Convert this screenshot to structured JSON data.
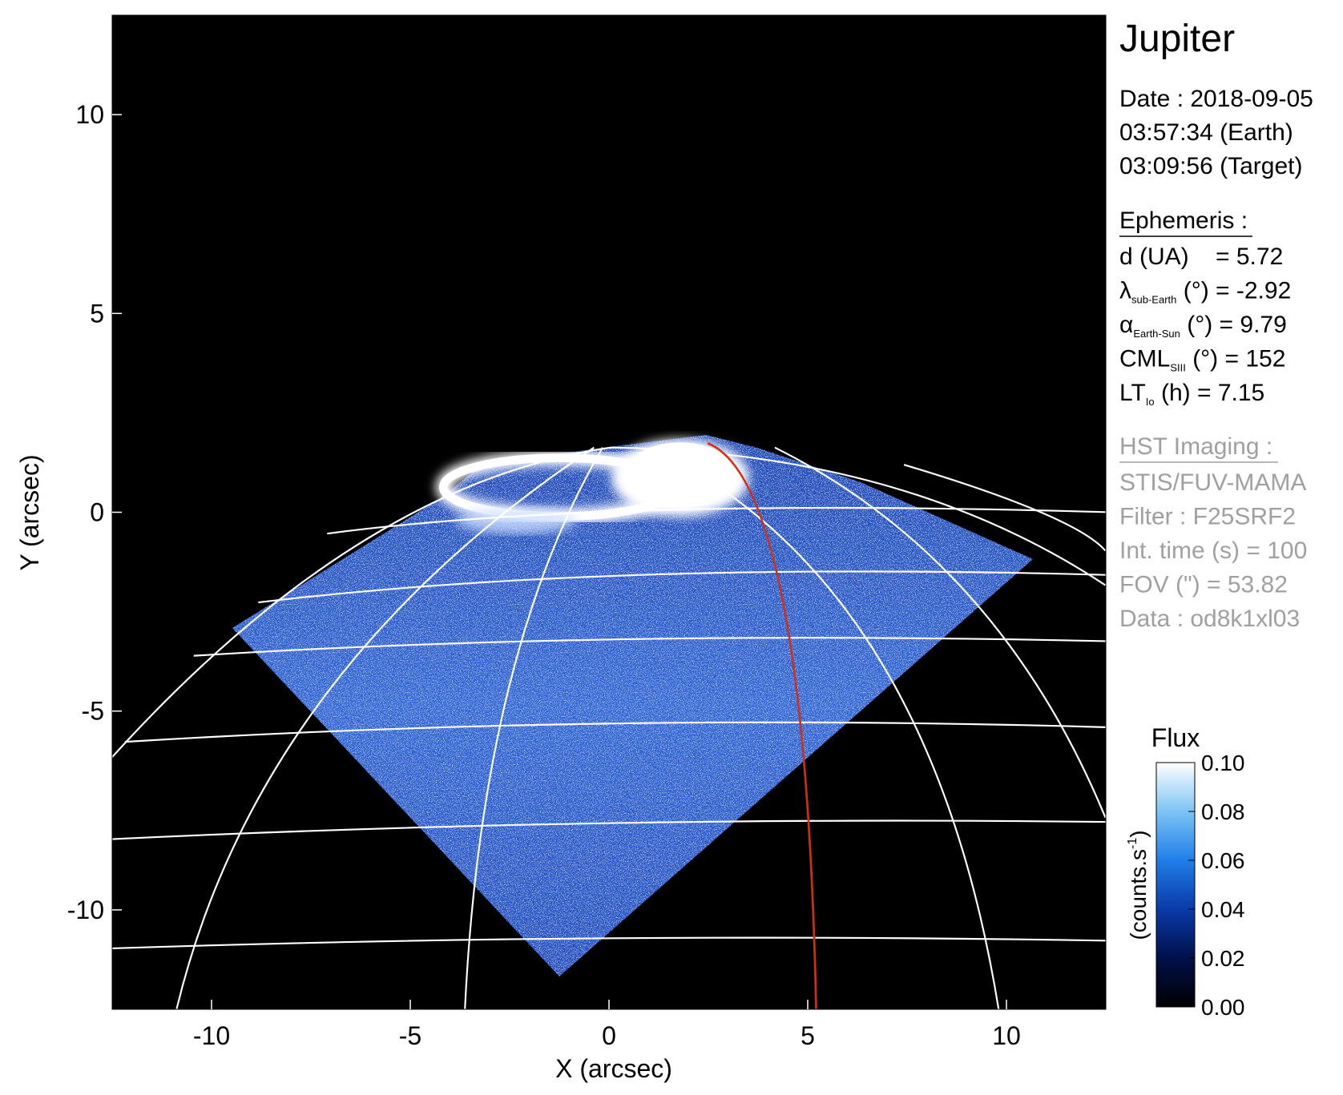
{
  "chart_data": {
    "type": "image",
    "xlabel": "X (arcsec)",
    "ylabel": "Y (arcsec)",
    "xlim": [
      -12.5,
      12.5
    ],
    "ylim": [
      -12.5,
      12.5
    ],
    "xticks": [
      -10,
      -5,
      0,
      5,
      10
    ],
    "yticks": [
      -10,
      -5,
      0,
      5,
      10
    ],
    "colorbar": {
      "title": "Flux",
      "label": [
        "(counts.s",
        "-1",
        ")"
      ],
      "lim": [
        0,
        0.1
      ],
      "ticks": [
        {
          "value": 0,
          "label": "0.00"
        },
        0.02,
        0.04,
        0.06,
        0.08,
        {
          "value": 0.1,
          "label": "0.10"
        }
      ],
      "colormap": [
        "#000000",
        "#00104a",
        "#0a3aa8",
        "#1f7ee8",
        "#7cc4f4",
        "#ffffff"
      ]
    }
  },
  "info": {
    "title": "Jupiter",
    "date": [
      "Date : 2018-09-05",
      "03:57:34 (Earth)",
      "03:09:56 (Target)"
    ],
    "ephemeris_title": "Ephemeris :",
    "ephemeris": [
      {
        "text": "d (UA)    = 5.72"
      },
      {
        "symbol": "λ",
        "sub": "sub-Earth",
        "text": " (°) = -2.92"
      },
      {
        "symbol": "α",
        "sub": "Earth-Sun",
        "text": " (°) = 9.79"
      },
      {
        "symbol": "CML",
        "sub": "SIII",
        "text": " (°) = 152"
      },
      {
        "symbol": "LT",
        "sub": "Io",
        "text": " (h) = 7.15"
      }
    ],
    "hst_title": "HST Imaging :",
    "hst": [
      "STIS/FUV-MAMA",
      "Filter : F25SRF2",
      "Int. time (s) = 100",
      "FOV (\") = 53.82",
      "Data : od8k1xl03"
    ]
  }
}
